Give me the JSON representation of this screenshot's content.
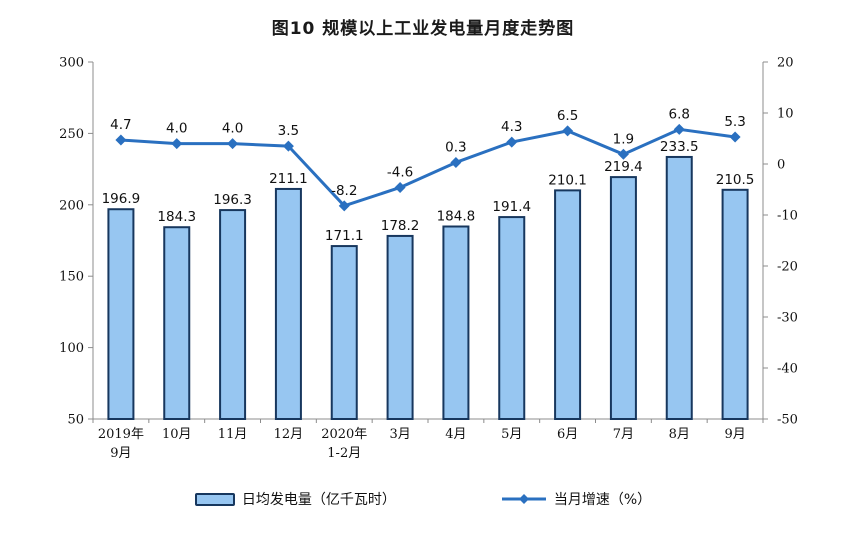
{
  "title": "图10 规模以上工业发电量月度走势图",
  "colors": {
    "bar_fill": "#97C6F1",
    "bar_border": "#17375E",
    "line": "#2A70C0",
    "axis": "#8C8C8C",
    "text": "#111111"
  },
  "legend": {
    "bar_label": "日均发电量（亿千瓦时）",
    "line_label": "当月增速（%）"
  },
  "chart_data": {
    "type": "combo",
    "title": "图10 规模以上工业发电量月度走势图",
    "categories": [
      [
        "2019年",
        "9月"
      ],
      [
        "10月"
      ],
      [
        "11月"
      ],
      [
        "12月"
      ],
      [
        "2020年",
        "1-2月"
      ],
      [
        "3月"
      ],
      [
        "4月"
      ],
      [
        "5月"
      ],
      [
        "6月"
      ],
      [
        "7月"
      ],
      [
        "8月"
      ],
      [
        "9月"
      ]
    ],
    "series": [
      {
        "name": "日均发电量（亿千瓦时）",
        "type": "bar",
        "axis": "left",
        "values": [
          196.9,
          184.3,
          196.3,
          211.1,
          171.1,
          178.2,
          184.8,
          191.4,
          210.1,
          219.4,
          233.5,
          210.5
        ]
      },
      {
        "name": "当月增速（%）",
        "type": "line",
        "axis": "right",
        "values": [
          4.7,
          4.0,
          4.0,
          3.5,
          -8.2,
          -4.6,
          0.3,
          4.3,
          6.5,
          1.9,
          6.8,
          5.3
        ]
      }
    ],
    "left_axis": {
      "min": 50,
      "max": 300,
      "ticks": [
        300,
        250,
        200,
        150,
        100,
        50
      ]
    },
    "right_axis": {
      "min": -50,
      "max": 20,
      "ticks": [
        20,
        10,
        0,
        -10,
        -20,
        -30,
        -40,
        -50
      ]
    },
    "grid": false,
    "legend_position": "bottom",
    "value_labels": "one-decimal"
  }
}
